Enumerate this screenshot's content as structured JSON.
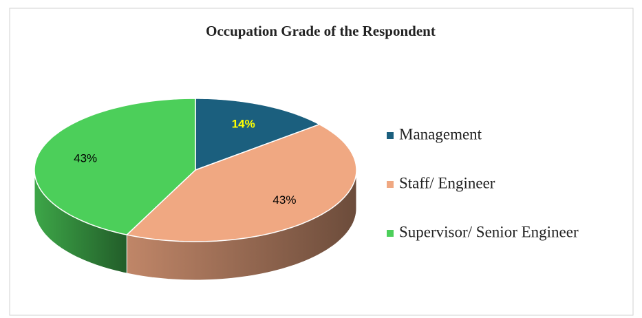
{
  "chart_data": {
    "type": "pie3d",
    "title": "Occupation Grade of the Respondent",
    "categories": [
      "Management",
      "Staff/ Engineer",
      "Supervisor/ Senior Engineer"
    ],
    "values": [
      14,
      43,
      43
    ],
    "value_labels": [
      "14%",
      "43%",
      "43%"
    ],
    "colors": [
      "#1b5f7e",
      "#f0a882",
      "#4ccf5a"
    ],
    "label_colors": [
      "#ffff00",
      "#000000",
      "#000000"
    ],
    "legend": "right"
  }
}
